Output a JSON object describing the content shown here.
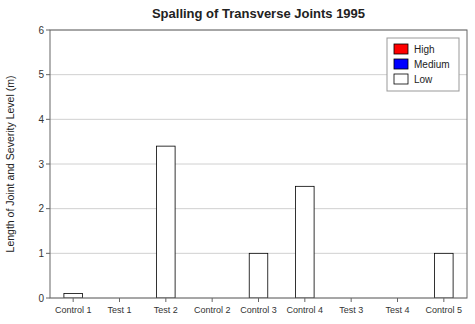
{
  "chart_data": {
    "type": "bar",
    "title": "Spalling of Transverse Joints 1995",
    "ylabel": "Length of Joint and Severity Level (m)",
    "categories": [
      "Control 1",
      "Test 1",
      "Test 2",
      "Control 2",
      "Control 3",
      "Control 4",
      "Test 3",
      "Test 4",
      "Control 5"
    ],
    "series": [
      {
        "name": "Low",
        "color": "#ffffff",
        "values": [
          0.1,
          0,
          3.4,
          0,
          1,
          2.5,
          0,
          0,
          1
        ]
      },
      {
        "name": "Medium",
        "color": "#0000ff",
        "values": [
          0,
          0,
          0,
          0,
          0,
          0,
          0,
          0,
          0
        ]
      },
      {
        "name": "High",
        "color": "#ff0000",
        "values": [
          0,
          0,
          0,
          0,
          0,
          0,
          0,
          0,
          0
        ]
      }
    ],
    "stacked": true,
    "ylim": [
      0,
      6
    ],
    "yticks": [
      0,
      1,
      2,
      3,
      4,
      5,
      6
    ],
    "grid": true,
    "legend": "upper right"
  }
}
